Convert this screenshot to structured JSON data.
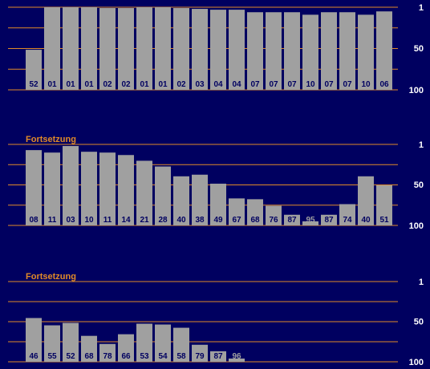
{
  "colors": {
    "background": "#000060",
    "bar": "#a0a0a0",
    "grid": "#e08a28",
    "continuation_label": "#e08a28",
    "axis_label": "#ffffff",
    "bar_label": "#000060",
    "bar_label_faded": "#a0a0a0"
  },
  "continuation_label": "Fortsetzung",
  "chart_data": [
    {
      "type": "bar",
      "y_axis": "reversed rank (1 at top, 100 at bottom)",
      "ylim": [
        100,
        1
      ],
      "y_ticks": [
        "1",
        "50",
        "100"
      ],
      "grid": true,
      "values": [
        52,
        1,
        1,
        1,
        2,
        2,
        1,
        1,
        2,
        3,
        4,
        4,
        7,
        7,
        7,
        10,
        7,
        7,
        10,
        6
      ],
      "labels": [
        "52",
        "01",
        "01",
        "01",
        "02",
        "02",
        "01",
        "01",
        "02",
        "03",
        "04",
        "04",
        "07",
        "07",
        "07",
        "10",
        "07",
        "07",
        "10",
        "06"
      ]
    },
    {
      "type": "bar",
      "title": "Fortsetzung",
      "y_axis": "reversed rank (1 at top, 100 at bottom)",
      "ylim": [
        100,
        1
      ],
      "y_ticks": [
        "1",
        "50",
        "100"
      ],
      "grid": true,
      "values": [
        8,
        11,
        3,
        10,
        11,
        14,
        21,
        28,
        40,
        38,
        49,
        67,
        68,
        76,
        87,
        95,
        87,
        74,
        40,
        51
      ],
      "labels": [
        "08",
        "11",
        "03",
        "10",
        "11",
        "14",
        "21",
        "28",
        "40",
        "38",
        "49",
        "67",
        "68",
        "76",
        "87",
        "95",
        "87",
        "74",
        "40",
        "51"
      ]
    },
    {
      "type": "bar",
      "title": "Fortsetzung",
      "y_axis": "reversed rank (1 at top, 100 at bottom)",
      "ylim": [
        100,
        1
      ],
      "y_ticks": [
        "1",
        "50",
        "100"
      ],
      "grid": true,
      "values": [
        46,
        55,
        52,
        68,
        78,
        66,
        53,
        54,
        58,
        79,
        87,
        96
      ],
      "labels": [
        "46",
        "55",
        "52",
        "68",
        "78",
        "66",
        "53",
        "54",
        "58",
        "79",
        "87",
        "96"
      ]
    }
  ]
}
